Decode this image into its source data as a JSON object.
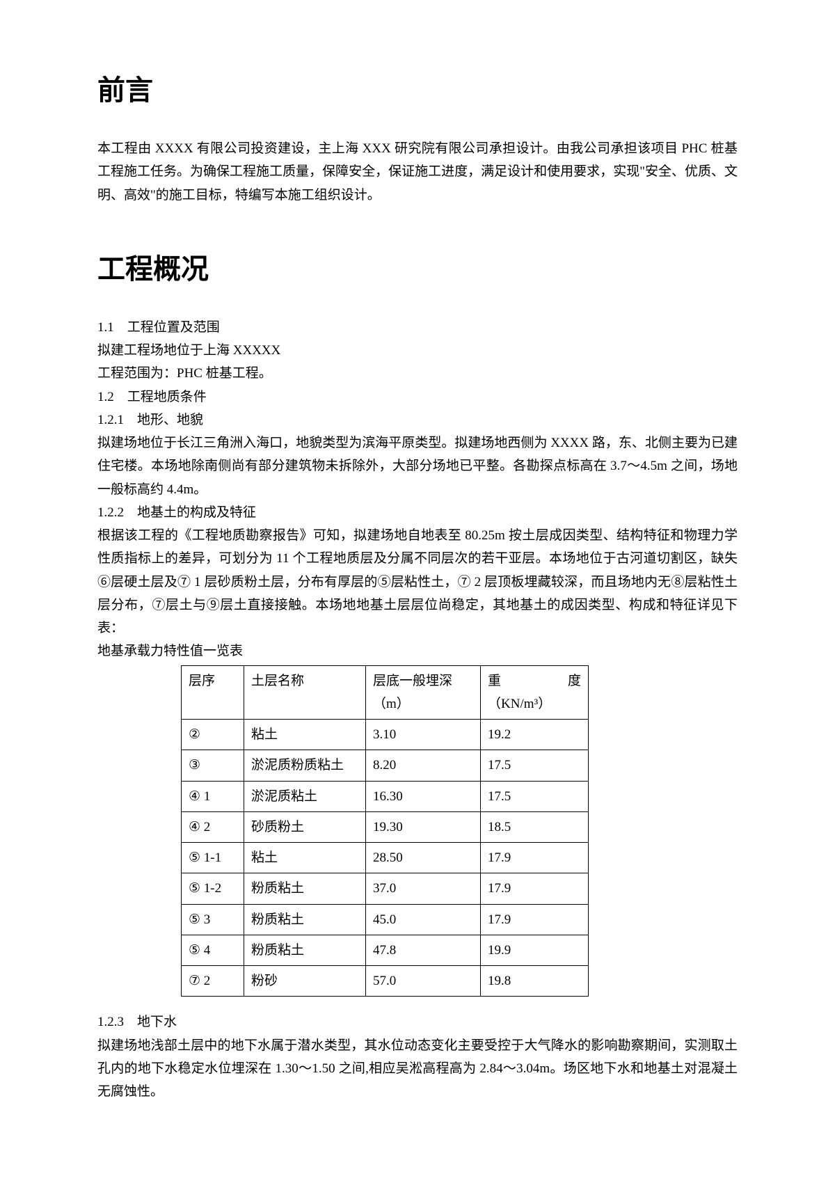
{
  "headings": {
    "preface": "前言",
    "overview": "工程概况"
  },
  "preface": {
    "p1": "本工程由 XXXX 有限公司投资建设，主上海 XXX 研究院有限公司承担设计。由我公司承担该项目 PHC 桩基工程施工任务。为确保工程施工质量，保障安全，保证施工进度，满足设计和使用要求，实现\"安全、优质、文明、高效\"的施工目标，特编写本施工组织设计。"
  },
  "overview": {
    "s1_1_title": "1.1　工程位置及范围",
    "s1_1_p1": "拟建工程场地位于上海 XXXXX",
    "s1_1_p2": "工程范围为：PHC 桩基工程。",
    "s1_2_title": "1.2　工程地质条件",
    "s1_2_1_title": "1.2.1　地形、地貌",
    "s1_2_1_p1": "拟建场地位于长江三角洲入海口，地貌类型为滨海平原类型。拟建场地西侧为 XXXX 路，东、北侧主要为已建住宅楼。本场地除南侧尚有部分建筑物未拆除外，大部分场地已平整。各勘探点标高在 3.7～4.5m 之间，场地一般标高约 4.4m。",
    "s1_2_2_title": "1.2.2　地基土的构成及特征",
    "s1_2_2_p1": "根据该工程的《工程地质勘察报告》可知，拟建场地自地表至 80.25m 按土层成因类型、结构特征和物理力学性质指标上的差异，可划分为 11 个工程地质层及分属不同层次的若干亚层。本场地位于古河道切割区，缺失⑥层硬土层及⑦ 1 层砂质粉土层，分布有厚层的⑤层粘性土，⑦ 2 层顶板埋藏较深，而且场地内无⑧层粘性土层分布，⑦层土与⑨层土直接接触。本场地地基土层层位尚稳定，其地基土的成因类型、构成和特征详见下表：",
    "s1_2_2_table_title": "地基承载力特性值一览表",
    "s1_2_3_title": "1.2.3　地下水",
    "s1_2_3_p1": "拟建场地浅部土层中的地下水属于潜水类型，其水位动态变化主要受控于大气降水的影响勘察期间，实测取土孔内的地下水稳定水位埋深在 1.30～1.50 之间,相应吴淞高程高为 2.84～3.04m。场区地下水和地基土对混凝土无腐蚀性。"
  },
  "table": {
    "headers": {
      "layer": "层序",
      "name": "土层名称",
      "depth_l1": "层底一般埋深",
      "depth_l2": "（m）",
      "density_l1a": "重",
      "density_l1b": "度",
      "density_l2": "（KN/m³）"
    },
    "rows": [
      {
        "layer": "②",
        "name": "粘土",
        "depth": "3.10",
        "density": "19.2"
      },
      {
        "layer": "③",
        "name": "淤泥质粉质粘土",
        "depth": "8.20",
        "density": "17.5"
      },
      {
        "layer": "④ 1",
        "name": "淤泥质粘土",
        "depth": "16.30",
        "density": "17.5"
      },
      {
        "layer": "④ 2",
        "name": "砂质粉土",
        "depth": "19.30",
        "density": "18.5"
      },
      {
        "layer": "⑤ 1-1",
        "name": "粘土",
        "depth": "28.50",
        "density": "17.9"
      },
      {
        "layer": "⑤ 1-2",
        "name": "粉质粘土",
        "depth": "37.0",
        "density": "17.9"
      },
      {
        "layer": "⑤ 3",
        "name": "粉质粘土",
        "depth": "45.0",
        "density": "17.9"
      },
      {
        "layer": "⑤ 4",
        "name": "粉质粘土",
        "depth": "47.8",
        "density": "19.9"
      },
      {
        "layer": "⑦ 2",
        "name": "粉砂",
        "depth": "57.0",
        "density": "19.8"
      }
    ]
  },
  "colors": {
    "text": "#000000",
    "background": "#ffffff",
    "border": "#000000"
  }
}
